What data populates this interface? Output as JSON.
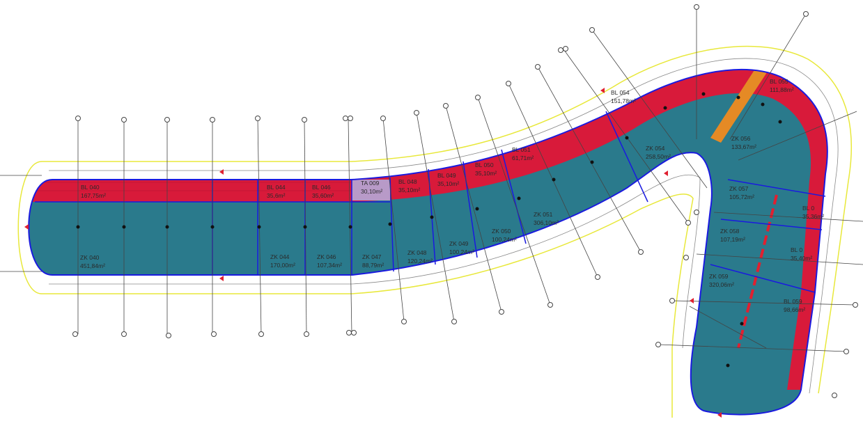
{
  "colors": {
    "background": "#ffffff",
    "zk_fill": "#2a7a8c",
    "bl_fill": "#d81a3a",
    "ta_fill": "#b89ac8",
    "stair_fill": "#e58a25",
    "boundary": "#1a1adf",
    "guide_yellow": "#e8e83a",
    "grid_line": "#444444",
    "label_text": "#2a2a2a"
  },
  "units": [
    {
      "id": "BL 040",
      "area": "167,75m²"
    },
    {
      "id": "BL 044",
      "area": "35,6m²"
    },
    {
      "id": "BL 046",
      "area": "35,60m²"
    },
    {
      "id": "TA 009",
      "area": "30,10m²"
    },
    {
      "id": "BL 048",
      "area": "35,10m²"
    },
    {
      "id": "BL 049",
      "area": "35,10m²"
    },
    {
      "id": "BL 050",
      "area": "35,10m²"
    },
    {
      "id": "BL 051",
      "area": "61,71m²"
    },
    {
      "id": "BL 054",
      "area": "151,78m²"
    },
    {
      "id": "BL 055",
      "area": "111,88m²"
    },
    {
      "id": "BL 0",
      "area": "35,36m²"
    },
    {
      "id": "BL 0",
      "area": "35,40m²"
    },
    {
      "id": "BL 059",
      "area": "98,66m²"
    },
    {
      "id": "ZK 040",
      "area": "451,84m²"
    },
    {
      "id": "ZK 044",
      "area": "170,00m²"
    },
    {
      "id": "ZK 046",
      "area": "107,34m²"
    },
    {
      "id": "ZK 047",
      "area": "88,79m²"
    },
    {
      "id": "ZK 048",
      "area": "120,24m²"
    },
    {
      "id": "ZK 049",
      "area": "100,24m²"
    },
    {
      "id": "ZK 050",
      "area": "100,24m²"
    },
    {
      "id": "ZK 051",
      "area": "306,10m²"
    },
    {
      "id": "ZK 054",
      "area": "258,50m²"
    },
    {
      "id": "ZK 056",
      "area": "133,67m²"
    },
    {
      "id": "ZK 057",
      "area": "105,72m²"
    },
    {
      "id": "ZK 058",
      "area": "107,19m²"
    },
    {
      "id": "ZK 059",
      "area": "320,06m²"
    }
  ]
}
